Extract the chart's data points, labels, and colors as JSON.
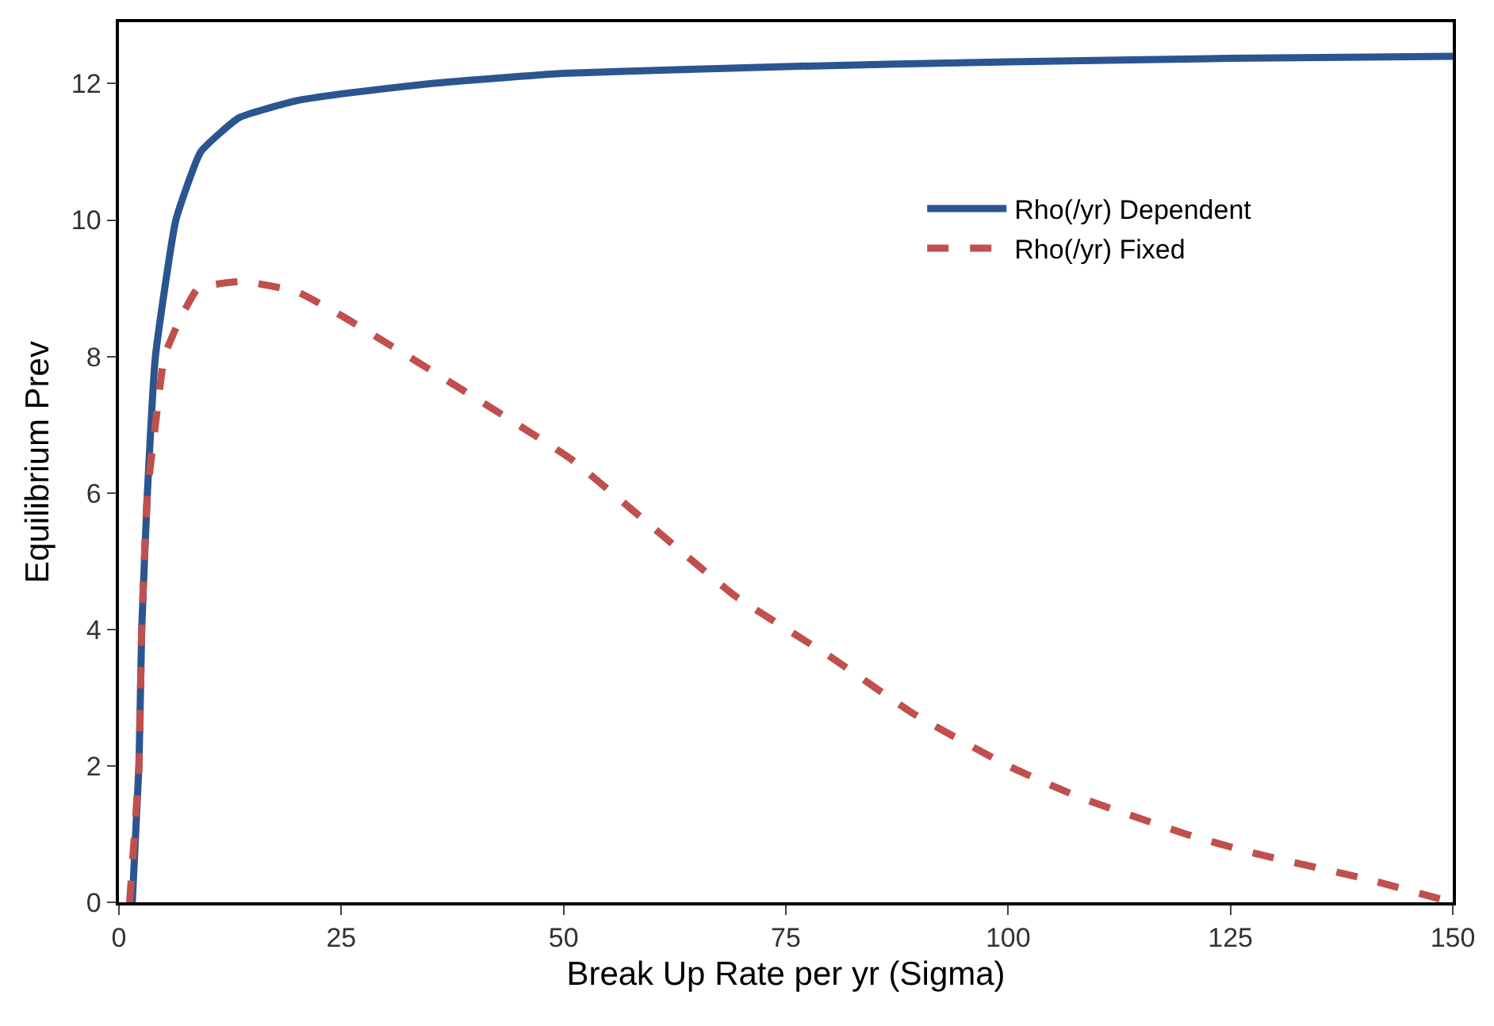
{
  "chart_data": {
    "type": "line",
    "xlabel": "Break Up Rate per yr (Sigma)",
    "ylabel": "Equilibrium Prev",
    "xlim": [
      0,
      150
    ],
    "xticks": [
      0,
      25,
      50,
      75,
      100,
      125,
      150
    ],
    "ylim": [
      0,
      12.9
    ],
    "yticks": [
      0,
      2,
      4,
      6,
      8,
      10,
      12
    ],
    "legend": "top right",
    "series": [
      {
        "name": "Rho(/yr) Dependent",
        "color": "#2b5590",
        "line_style": "solid",
        "x": [
          1.5,
          2.25,
          2.56,
          3.2,
          4.1,
          6.4,
          9.2,
          13.5,
          20,
          25,
          35,
          50,
          75,
          100,
          125,
          150
        ],
        "values": [
          0,
          2,
          4,
          6,
          8,
          10,
          11,
          11.5,
          11.75,
          11.85,
          12.0,
          12.15,
          12.25,
          12.32,
          12.37,
          12.4
        ]
      },
      {
        "name": "Rho(/yr) Fixed",
        "color": "#c0504d",
        "line_style": "dashed",
        "x": [
          1.2,
          2.25,
          2.56,
          3.2,
          4.1,
          5.1,
          6.7,
          8.9,
          13.8,
          20,
          25,
          30.7,
          40,
          50.8,
          60,
          69.3,
          80,
          89.4,
          100,
          108,
          120,
          127.3,
          140,
          150
        ],
        "values": [
          0,
          2,
          4,
          6,
          7,
          8,
          8.5,
          9,
          9.1,
          8.95,
          8.6,
          8.15,
          7.4,
          6.5,
          5.5,
          4.49,
          3.6,
          2.76,
          2.0,
          1.54,
          1.0,
          0.73,
          0.35,
          0
        ]
      }
    ]
  }
}
